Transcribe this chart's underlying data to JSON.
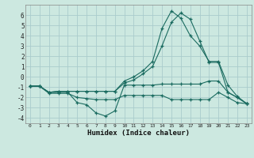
{
  "xlabel": "Humidex (Indice chaleur)",
  "bg_color": "#cce8e0",
  "grid_color": "#aacccc",
  "line_color": "#1a6b60",
  "xlim": [
    -0.5,
    23.5
  ],
  "ylim": [
    -4.5,
    7.0
  ],
  "xticks": [
    0,
    1,
    2,
    3,
    4,
    5,
    6,
    7,
    8,
    9,
    10,
    11,
    12,
    13,
    14,
    15,
    16,
    17,
    18,
    19,
    20,
    21,
    22,
    23
  ],
  "yticks": [
    -4,
    -3,
    -2,
    -1,
    0,
    1,
    2,
    3,
    4,
    5,
    6
  ],
  "line1_x": [
    0,
    1,
    2,
    3,
    4,
    5,
    6,
    7,
    8,
    9,
    10,
    11,
    12,
    13,
    14,
    15,
    16,
    17,
    18,
    19,
    20,
    21,
    22,
    23
  ],
  "line1_y": [
    -0.9,
    -0.9,
    -1.5,
    -1.5,
    -1.5,
    -2.5,
    -2.7,
    -3.5,
    -3.8,
    -3.3,
    -0.8,
    -0.8,
    -0.8,
    -0.8,
    -0.7,
    -0.7,
    -0.7,
    -0.7,
    -0.7,
    -0.4,
    -0.4,
    -1.5,
    -2.0,
    -2.6
  ],
  "line2_x": [
    0,
    1,
    2,
    3,
    4,
    5,
    6,
    7,
    8,
    9,
    10,
    11,
    12,
    13,
    14,
    15,
    16,
    17,
    18,
    19,
    20,
    21,
    22,
    23
  ],
  "line2_y": [
    -0.9,
    -0.9,
    -1.6,
    -1.6,
    -1.6,
    -2.0,
    -2.1,
    -2.2,
    -2.2,
    -2.2,
    -1.8,
    -1.8,
    -1.8,
    -1.8,
    -1.8,
    -2.2,
    -2.2,
    -2.2,
    -2.2,
    -2.2,
    -1.5,
    -2.0,
    -2.5,
    -2.6
  ],
  "line3_x": [
    0,
    1,
    2,
    3,
    4,
    5,
    6,
    7,
    8,
    9,
    10,
    11,
    12,
    13,
    14,
    15,
    16,
    17,
    18,
    19,
    20,
    21,
    22,
    23
  ],
  "line3_y": [
    -0.9,
    -0.9,
    -1.5,
    -1.4,
    -1.4,
    -1.4,
    -1.4,
    -1.4,
    -1.4,
    -1.4,
    -0.6,
    -0.3,
    0.3,
    1.0,
    3.0,
    5.3,
    6.2,
    5.6,
    3.5,
    1.4,
    1.4,
    -1.5,
    -2.0,
    -2.6
  ],
  "line4_x": [
    0,
    1,
    2,
    3,
    4,
    5,
    6,
    7,
    8,
    9,
    10,
    11,
    12,
    13,
    14,
    15,
    16,
    17,
    18,
    19,
    20,
    21,
    22,
    23
  ],
  "line4_y": [
    -0.9,
    -0.9,
    -1.5,
    -1.4,
    -1.4,
    -1.4,
    -1.4,
    -1.4,
    -1.4,
    -1.4,
    -0.4,
    0.0,
    0.6,
    1.5,
    4.7,
    6.4,
    5.7,
    4.0,
    3.0,
    1.5,
    1.5,
    -0.8,
    -1.9,
    -2.6
  ]
}
